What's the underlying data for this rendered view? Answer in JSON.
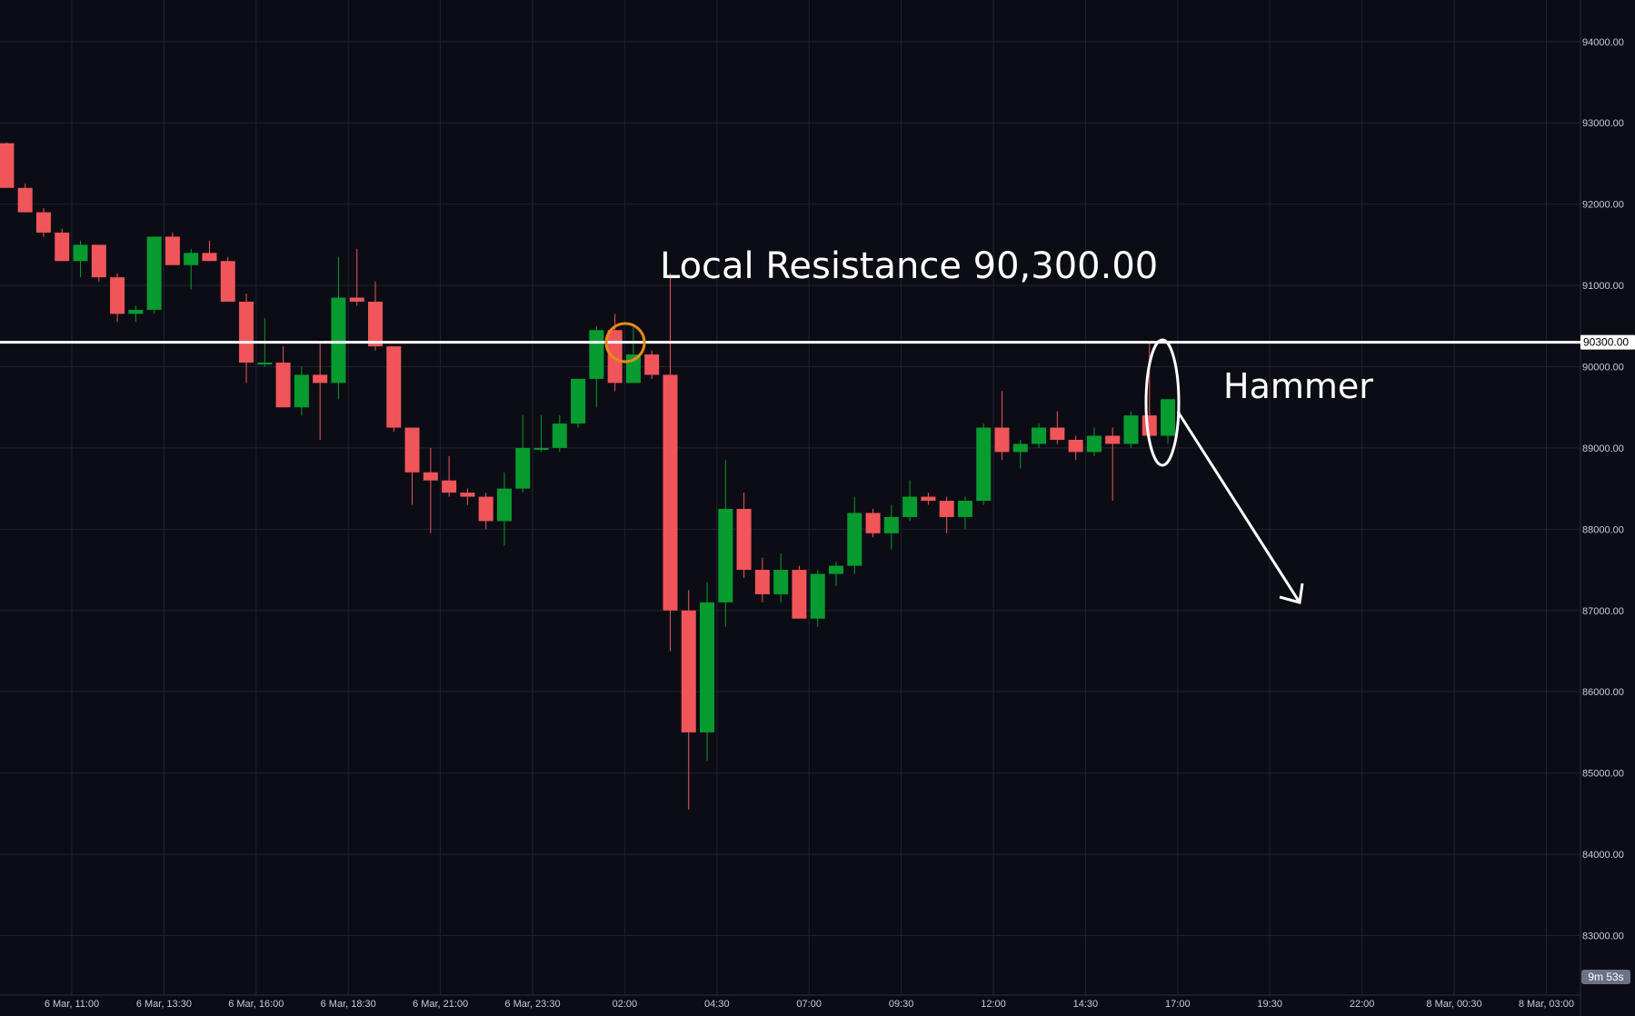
{
  "chart_data": {
    "type": "candlestick",
    "title": "",
    "xlabel": "",
    "ylabel": "",
    "ylim": [
      82000,
      94500
    ],
    "y_ticks": [
      "94000.00",
      "93000.00",
      "92000.00",
      "91000.00",
      "90000.00",
      "89000.00",
      "88000.00",
      "87000.00",
      "86000.00",
      "85000.00",
      "84000.00",
      "83000.00"
    ],
    "y_tick_values": [
      94000,
      93000,
      92000,
      91000,
      90000,
      89000,
      88000,
      87000,
      86000,
      85000,
      84000,
      83000
    ],
    "x_ticks": [
      "6 Mar, 11:00",
      "6 Mar, 13:30",
      "6 Mar, 16:00",
      "6 Mar, 18:30",
      "6 Mar, 21:00",
      "6 Mar, 23:30",
      "02:00",
      "04:30",
      "07:00",
      "09:30",
      "12:00",
      "14:30",
      "17:00",
      "19:30",
      "22:00",
      "8 Mar, 00:30",
      "8 Mar, 03:00"
    ],
    "bar_interval_minutes": 30,
    "up_color": "#089b30",
    "down_color": "#f0555a",
    "grid": true,
    "candles": [
      [
        92750,
        92760,
        92200,
        92200
      ],
      [
        92200,
        92250,
        91900,
        91900
      ],
      [
        91900,
        91950,
        91600,
        91650
      ],
      [
        91650,
        91700,
        91300,
        91300
      ],
      [
        91300,
        91550,
        91100,
        91500
      ],
      [
        91500,
        91500,
        91050,
        91100
      ],
      [
        91100,
        91150,
        90550,
        90650
      ],
      [
        90650,
        90750,
        90550,
        90700
      ],
      [
        90700,
        91600,
        90650,
        91600
      ],
      [
        91600,
        91650,
        91250,
        91250
      ],
      [
        91250,
        91450,
        90950,
        91400
      ],
      [
        91400,
        91550,
        91300,
        91300
      ],
      [
        91300,
        91350,
        90800,
        90800
      ],
      [
        90800,
        90900,
        89800,
        90050
      ],
      [
        90050,
        90600,
        90000,
        90050
      ],
      [
        90050,
        90250,
        89500,
        89500
      ],
      [
        89500,
        90000,
        89400,
        89900
      ],
      [
        89900,
        90300,
        89100,
        89800
      ],
      [
        89800,
        91350,
        89600,
        90850
      ],
      [
        90850,
        91450,
        90750,
        90800
      ],
      [
        90800,
        91050,
        90200,
        90250
      ],
      [
        90250,
        90250,
        89200,
        89250
      ],
      [
        89250,
        89250,
        88300,
        88700
      ],
      [
        88700,
        89000,
        87950,
        88600
      ],
      [
        88600,
        88900,
        88400,
        88450
      ],
      [
        88450,
        88500,
        88300,
        88400
      ],
      [
        88400,
        88450,
        88000,
        88100
      ],
      [
        88100,
        88700,
        87800,
        88500
      ],
      [
        88500,
        89400,
        88450,
        89000
      ],
      [
        89000,
        89400,
        88950,
        89000
      ],
      [
        89000,
        89400,
        88950,
        89300
      ],
      [
        89300,
        89850,
        89250,
        89850
      ],
      [
        89850,
        90500,
        89500,
        90450
      ],
      [
        90450,
        90650,
        89700,
        89800
      ],
      [
        89800,
        90500,
        89800,
        90150
      ],
      [
        90150,
        90200,
        89850,
        89900
      ],
      [
        89900,
        91150,
        86500,
        87000
      ],
      [
        87000,
        87250,
        84550,
        85500
      ],
      [
        85500,
        87350,
        85150,
        87100
      ],
      [
        87100,
        88850,
        86800,
        88250
      ],
      [
        88250,
        88450,
        87400,
        87500
      ],
      [
        87500,
        87650,
        87100,
        87200
      ],
      [
        87200,
        87700,
        87100,
        87500
      ],
      [
        87500,
        87550,
        86900,
        86900
      ],
      [
        86900,
        87500,
        86800,
        87450
      ],
      [
        87450,
        87600,
        87300,
        87550
      ],
      [
        87550,
        88400,
        87450,
        88200
      ],
      [
        88200,
        88250,
        87900,
        87950
      ],
      [
        87950,
        88300,
        87750,
        88150
      ],
      [
        88150,
        88600,
        88100,
        88400
      ],
      [
        88400,
        88450,
        88300,
        88350
      ],
      [
        88350,
        88400,
        87950,
        88150
      ],
      [
        88150,
        88400,
        88000,
        88350
      ],
      [
        88350,
        89300,
        88300,
        89250
      ],
      [
        89250,
        89700,
        88850,
        88950
      ],
      [
        88950,
        89100,
        88750,
        89050
      ],
      [
        89050,
        89300,
        89000,
        89250
      ],
      [
        89250,
        89450,
        89050,
        89100
      ],
      [
        89100,
        89150,
        88850,
        88950
      ],
      [
        88950,
        89250,
        88900,
        89150
      ],
      [
        89150,
        89250,
        88350,
        89050
      ],
      [
        89050,
        89450,
        89000,
        89400
      ],
      [
        89400,
        90300,
        89050,
        89150
      ],
      [
        89150,
        89600,
        89050,
        89600
      ]
    ]
  },
  "annotations": {
    "resistance_label": "Local Resistance 90,300.00",
    "resistance_price": 90300,
    "resistance_price_label": "90300.00",
    "pattern_label": "Hammer"
  },
  "countdown": "9m 53s",
  "colors": {
    "background": "#0c0d14",
    "grid": "#1f2230",
    "axis_text": "#c9ccd6",
    "annotation": "#ffffff",
    "highlight_circle": "#e8891a"
  }
}
